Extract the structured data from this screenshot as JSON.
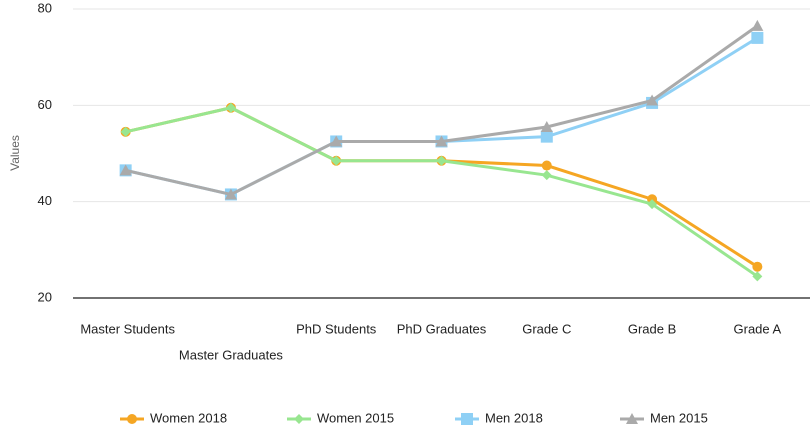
{
  "chart_data": {
    "type": "line",
    "y_label": "Values",
    "categories": [
      "Master Students",
      "Master Graduates",
      "PhD Students",
      "PhD Graduates",
      "Grade C",
      "Grade B",
      "Grade A"
    ],
    "series": [
      {
        "name": "Women 2018",
        "color": "#f5a623",
        "marker": "circle",
        "values": [
          54.5,
          59.5,
          48.5,
          48.5,
          47.5,
          40.5,
          26.5
        ]
      },
      {
        "name": "Women 2015",
        "color": "#98e690",
        "marker": "diamond",
        "values": [
          54.5,
          59.5,
          48.5,
          48.5,
          45.5,
          39.5,
          24.5
        ]
      },
      {
        "name": "Men 2018",
        "color": "#8fd0f5",
        "marker": "square",
        "values": [
          46.5,
          41.5,
          52.5,
          52.5,
          53.5,
          60.5,
          74
        ]
      },
      {
        "name": "Men 2015",
        "color": "#aaaaaa",
        "marker": "triangle",
        "values": [
          46.5,
          41.5,
          52.5,
          52.5,
          55.5,
          61,
          76.5
        ]
      }
    ],
    "ylim": [
      20,
      80
    ],
    "yticks": [
      20,
      40,
      60,
      80
    ],
    "grid": true,
    "legend": "bottom"
  }
}
